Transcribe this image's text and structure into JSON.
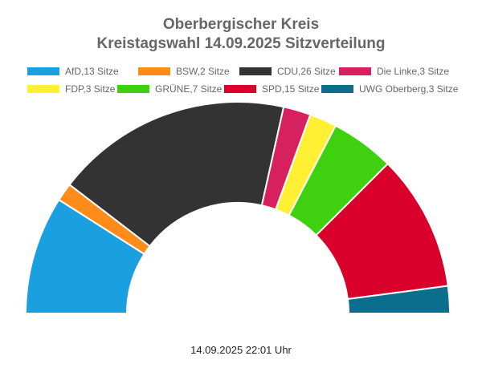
{
  "chart_data": {
    "type": "pie",
    "subtype": "half-donut-parliament",
    "title": "Oberbergischer Kreis",
    "subtitle": "Kreistagswahl 14.09.2025 Sitzverteilung",
    "series": [
      {
        "name": "AfD,13 Sitze",
        "party": "AfD",
        "seats": 13,
        "color": "#1a9fe0"
      },
      {
        "name": "BSW,2 Sitze",
        "party": "BSW",
        "seats": 2,
        "color": "#ff8c1a"
      },
      {
        "name": "CDU,26 Sitze",
        "party": "CDU",
        "seats": 26,
        "color": "#333333"
      },
      {
        "name": "Die Linke,3 Sitze",
        "party": "Die Linke",
        "seats": 3,
        "color": "#d6215e"
      },
      {
        "name": "FDP,3 Sitze",
        "party": "FDP",
        "seats": 3,
        "color": "#fff033"
      },
      {
        "name": "GRÜNE,7 Sitze",
        "party": "GRÜNE",
        "seats": 7,
        "color": "#3fd00f"
      },
      {
        "name": "SPD,15 Sitze",
        "party": "SPD",
        "seats": 15,
        "color": "#d9002b"
      },
      {
        "name": "UWG Oberberg,3 Sitze",
        "party": "UWG Oberberg",
        "seats": 3,
        "color": "#0b6e8c"
      }
    ],
    "legend_position": "top",
    "timestamp": "14.09.2025 22:01 Uhr"
  }
}
